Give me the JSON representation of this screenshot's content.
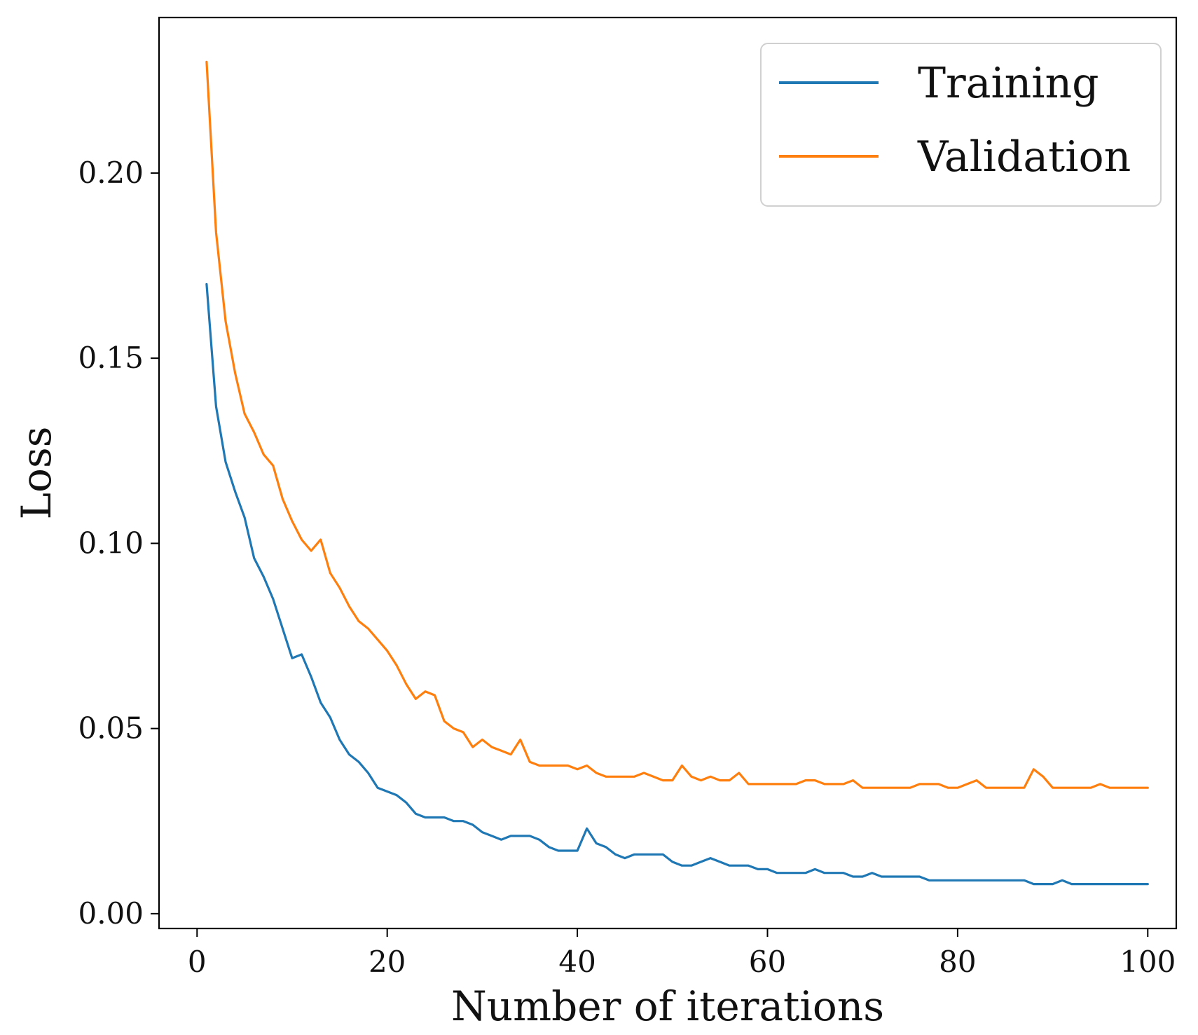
{
  "chart_data": {
    "type": "line",
    "title": "",
    "xlabel": "Number of iterations",
    "ylabel": "Loss",
    "xlim": [
      -4,
      103
    ],
    "ylim": [
      -0.004,
      0.242
    ],
    "xticks": [
      0,
      20,
      40,
      60,
      80,
      100
    ],
    "xtick_labels": [
      "0",
      "20",
      "40",
      "60",
      "80",
      "100"
    ],
    "yticks": [
      0.0,
      0.05,
      0.1,
      0.15,
      0.2
    ],
    "ytick_labels": [
      "0.00",
      "0.05",
      "0.10",
      "0.15",
      "0.20"
    ],
    "grid": false,
    "legend_position": "top-right",
    "series": [
      {
        "name": "Training",
        "color": "#1f77b4",
        "x": [
          1,
          2,
          3,
          4,
          5,
          6,
          7,
          8,
          9,
          10,
          11,
          12,
          13,
          14,
          15,
          16,
          17,
          18,
          19,
          20,
          21,
          22,
          23,
          24,
          25,
          26,
          27,
          28,
          29,
          30,
          31,
          32,
          33,
          34,
          35,
          36,
          37,
          38,
          39,
          40,
          41,
          42,
          43,
          44,
          45,
          46,
          47,
          48,
          49,
          50,
          51,
          52,
          53,
          54,
          55,
          56,
          57,
          58,
          59,
          60,
          61,
          62,
          63,
          64,
          65,
          66,
          67,
          68,
          69,
          70,
          71,
          72,
          73,
          74,
          75,
          76,
          77,
          78,
          79,
          80,
          81,
          82,
          83,
          84,
          85,
          86,
          87,
          88,
          89,
          90,
          91,
          92,
          93,
          94,
          95,
          96,
          97,
          98,
          99,
          100
        ],
        "values": [
          0.17,
          0.137,
          0.122,
          0.114,
          0.107,
          0.096,
          0.091,
          0.085,
          0.077,
          0.069,
          0.07,
          0.064,
          0.057,
          0.053,
          0.047,
          0.043,
          0.041,
          0.038,
          0.034,
          0.033,
          0.032,
          0.03,
          0.027,
          0.026,
          0.026,
          0.026,
          0.025,
          0.025,
          0.024,
          0.022,
          0.021,
          0.02,
          0.021,
          0.021,
          0.021,
          0.02,
          0.018,
          0.017,
          0.017,
          0.017,
          0.023,
          0.019,
          0.018,
          0.016,
          0.015,
          0.016,
          0.016,
          0.016,
          0.016,
          0.014,
          0.013,
          0.013,
          0.014,
          0.015,
          0.014,
          0.013,
          0.013,
          0.013,
          0.012,
          0.012,
          0.011,
          0.011,
          0.011,
          0.011,
          0.012,
          0.011,
          0.011,
          0.011,
          0.01,
          0.01,
          0.011,
          0.01,
          0.01,
          0.01,
          0.01,
          0.01,
          0.009,
          0.009,
          0.009,
          0.009,
          0.009,
          0.009,
          0.009,
          0.009,
          0.009,
          0.009,
          0.009,
          0.008,
          0.008,
          0.008,
          0.009,
          0.008,
          0.008,
          0.008,
          0.008,
          0.008,
          0.008,
          0.008,
          0.008,
          0.008
        ]
      },
      {
        "name": "Validation",
        "color": "#ff7f0e",
        "x": [
          1,
          2,
          3,
          4,
          5,
          6,
          7,
          8,
          9,
          10,
          11,
          12,
          13,
          14,
          15,
          16,
          17,
          18,
          19,
          20,
          21,
          22,
          23,
          24,
          25,
          26,
          27,
          28,
          29,
          30,
          31,
          32,
          33,
          34,
          35,
          36,
          37,
          38,
          39,
          40,
          41,
          42,
          43,
          44,
          45,
          46,
          47,
          48,
          49,
          50,
          51,
          52,
          53,
          54,
          55,
          56,
          57,
          58,
          59,
          60,
          61,
          62,
          63,
          64,
          65,
          66,
          67,
          68,
          69,
          70,
          71,
          72,
          73,
          74,
          75,
          76,
          77,
          78,
          79,
          80,
          81,
          82,
          83,
          84,
          85,
          86,
          87,
          88,
          89,
          90,
          91,
          92,
          93,
          94,
          95,
          96,
          97,
          98,
          99,
          100
        ],
        "values": [
          0.23,
          0.184,
          0.16,
          0.146,
          0.135,
          0.13,
          0.124,
          0.121,
          0.112,
          0.106,
          0.101,
          0.098,
          0.101,
          0.092,
          0.088,
          0.083,
          0.079,
          0.077,
          0.074,
          0.071,
          0.067,
          0.062,
          0.058,
          0.06,
          0.059,
          0.052,
          0.05,
          0.049,
          0.045,
          0.047,
          0.045,
          0.044,
          0.043,
          0.047,
          0.041,
          0.04,
          0.04,
          0.04,
          0.04,
          0.039,
          0.04,
          0.038,
          0.037,
          0.037,
          0.037,
          0.037,
          0.038,
          0.037,
          0.036,
          0.036,
          0.04,
          0.037,
          0.036,
          0.037,
          0.036,
          0.036,
          0.038,
          0.035,
          0.035,
          0.035,
          0.035,
          0.035,
          0.035,
          0.036,
          0.036,
          0.035,
          0.035,
          0.035,
          0.036,
          0.034,
          0.034,
          0.034,
          0.034,
          0.034,
          0.034,
          0.035,
          0.035,
          0.035,
          0.034,
          0.034,
          0.035,
          0.036,
          0.034,
          0.034,
          0.034,
          0.034,
          0.034,
          0.039,
          0.037,
          0.034,
          0.034,
          0.034,
          0.034,
          0.034,
          0.035,
          0.034,
          0.034,
          0.034,
          0.034,
          0.034
        ]
      }
    ]
  }
}
